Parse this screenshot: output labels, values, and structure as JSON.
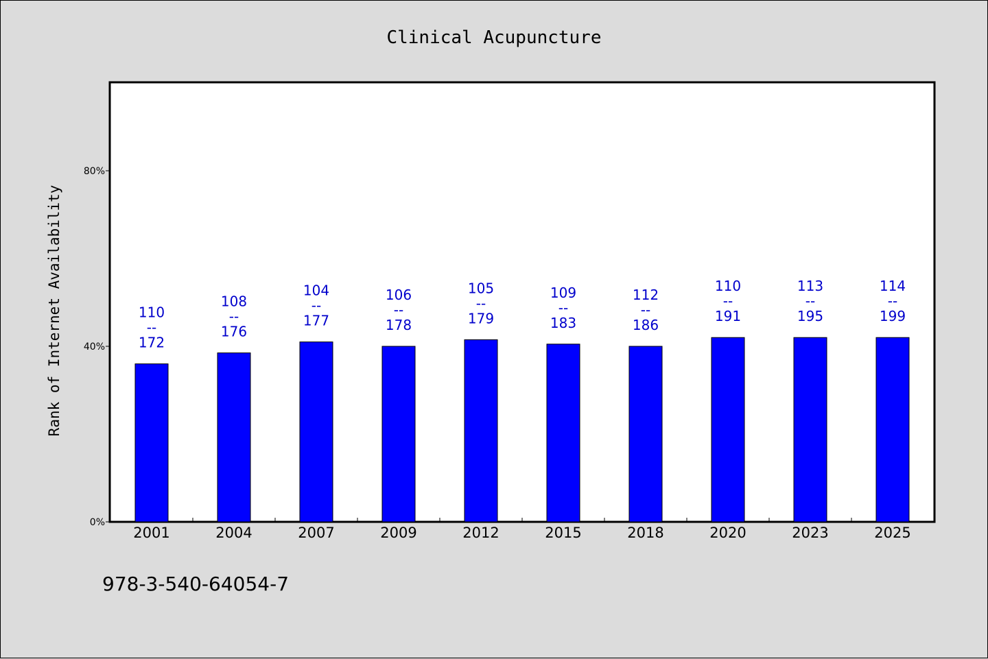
{
  "chart_data": {
    "type": "bar",
    "title": "Clinical Acupuncture",
    "xlabel": "",
    "ylabel": "Rank of Internet Availability",
    "categories": [
      "2001",
      "2004",
      "2007",
      "2009",
      "2012",
      "2015",
      "2018",
      "2020",
      "2023",
      "2025"
    ],
    "series": [
      {
        "values": [
          36,
          38.5,
          41,
          40,
          41.5,
          40.5,
          40,
          42,
          42,
          42
        ]
      }
    ],
    "bar_labels": [
      {
        "top": "110",
        "sep": "--",
        "bottom": "172"
      },
      {
        "top": "108",
        "sep": "--",
        "bottom": "176"
      },
      {
        "top": "104",
        "sep": "--",
        "bottom": "177"
      },
      {
        "top": "106",
        "sep": "--",
        "bottom": "178"
      },
      {
        "top": "105",
        "sep": "--",
        "bottom": "179"
      },
      {
        "top": "109",
        "sep": "--",
        "bottom": "183"
      },
      {
        "top": "112",
        "sep": "--",
        "bottom": "186"
      },
      {
        "top": "110",
        "sep": "--",
        "bottom": "191"
      },
      {
        "top": "113",
        "sep": "--",
        "bottom": "195"
      },
      {
        "top": "114",
        "sep": "--",
        "bottom": "199"
      }
    ],
    "y_ticks": [
      {
        "value": 0,
        "label": "0%"
      },
      {
        "value": 40,
        "label": "40%"
      },
      {
        "value": 80,
        "label": "80%"
      }
    ],
    "ylim": [
      0,
      100
    ],
    "grid": false,
    "colors": {
      "bar": "#0000ff",
      "label": "#0000cc",
      "plot_bg": "#ffffff",
      "page_bg": "#dcdcdc"
    }
  },
  "footer": {
    "isbn": "978-3-540-64054-7"
  }
}
